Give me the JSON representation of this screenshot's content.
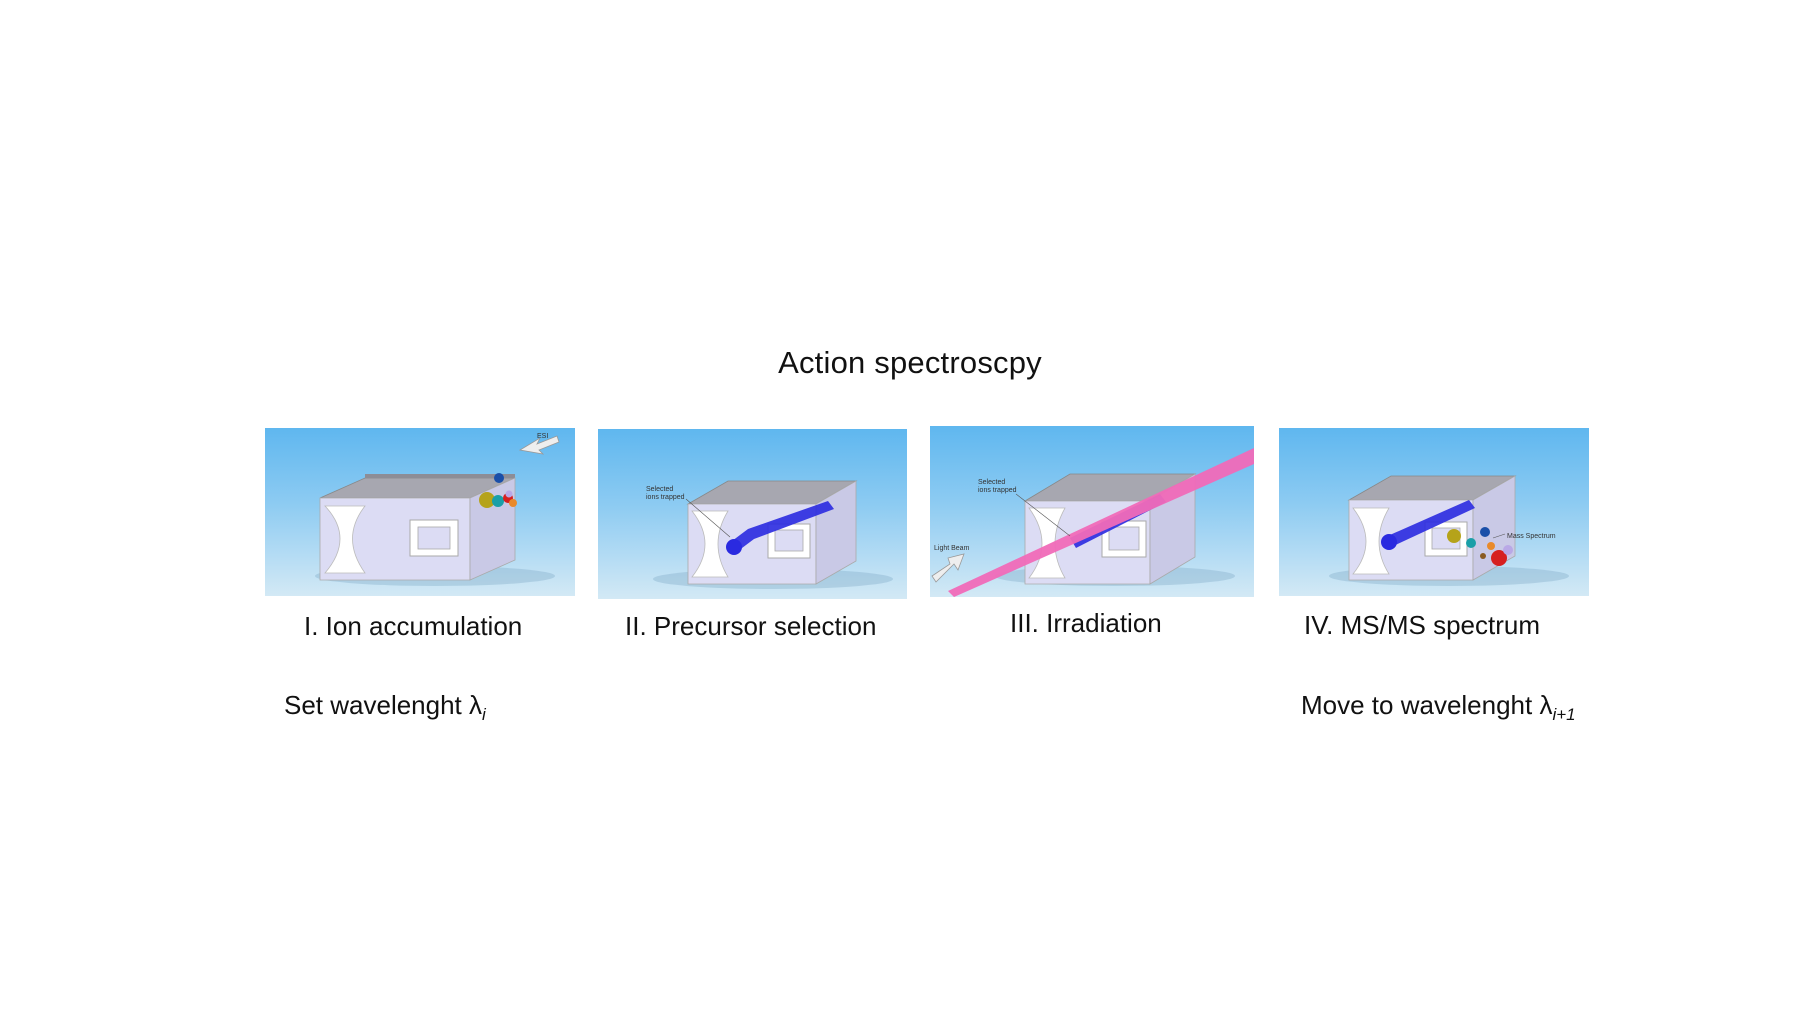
{
  "title": "Action spectroscpy",
  "steps": [
    {
      "label": "I. Ion accumulation",
      "annotation": "ESI"
    },
    {
      "label": "II. Precursor selection",
      "annotation_1": "Selected",
      "annotation_2": "ions trapped"
    },
    {
      "label": "III. Irradiation",
      "annotation_1": "Selected",
      "annotation_2": "ions trapped",
      "beam_label": "Light Beam"
    },
    {
      "label": "IV. MS/MS spectrum",
      "annotation": "Mass Spectrum"
    }
  ],
  "notes": {
    "left_text": "Set wavelenght λ",
    "left_sub": "i",
    "right_text": "Move to wavelenght λ",
    "right_sub": "i+1"
  },
  "colors": {
    "sky_top": "#5fb7ef",
    "trap_body": "#dcdcf4",
    "trap_top": "#9a9aa4",
    "ion_cloud": "#2a2ae0",
    "laser_beam": "#f06ab8"
  }
}
